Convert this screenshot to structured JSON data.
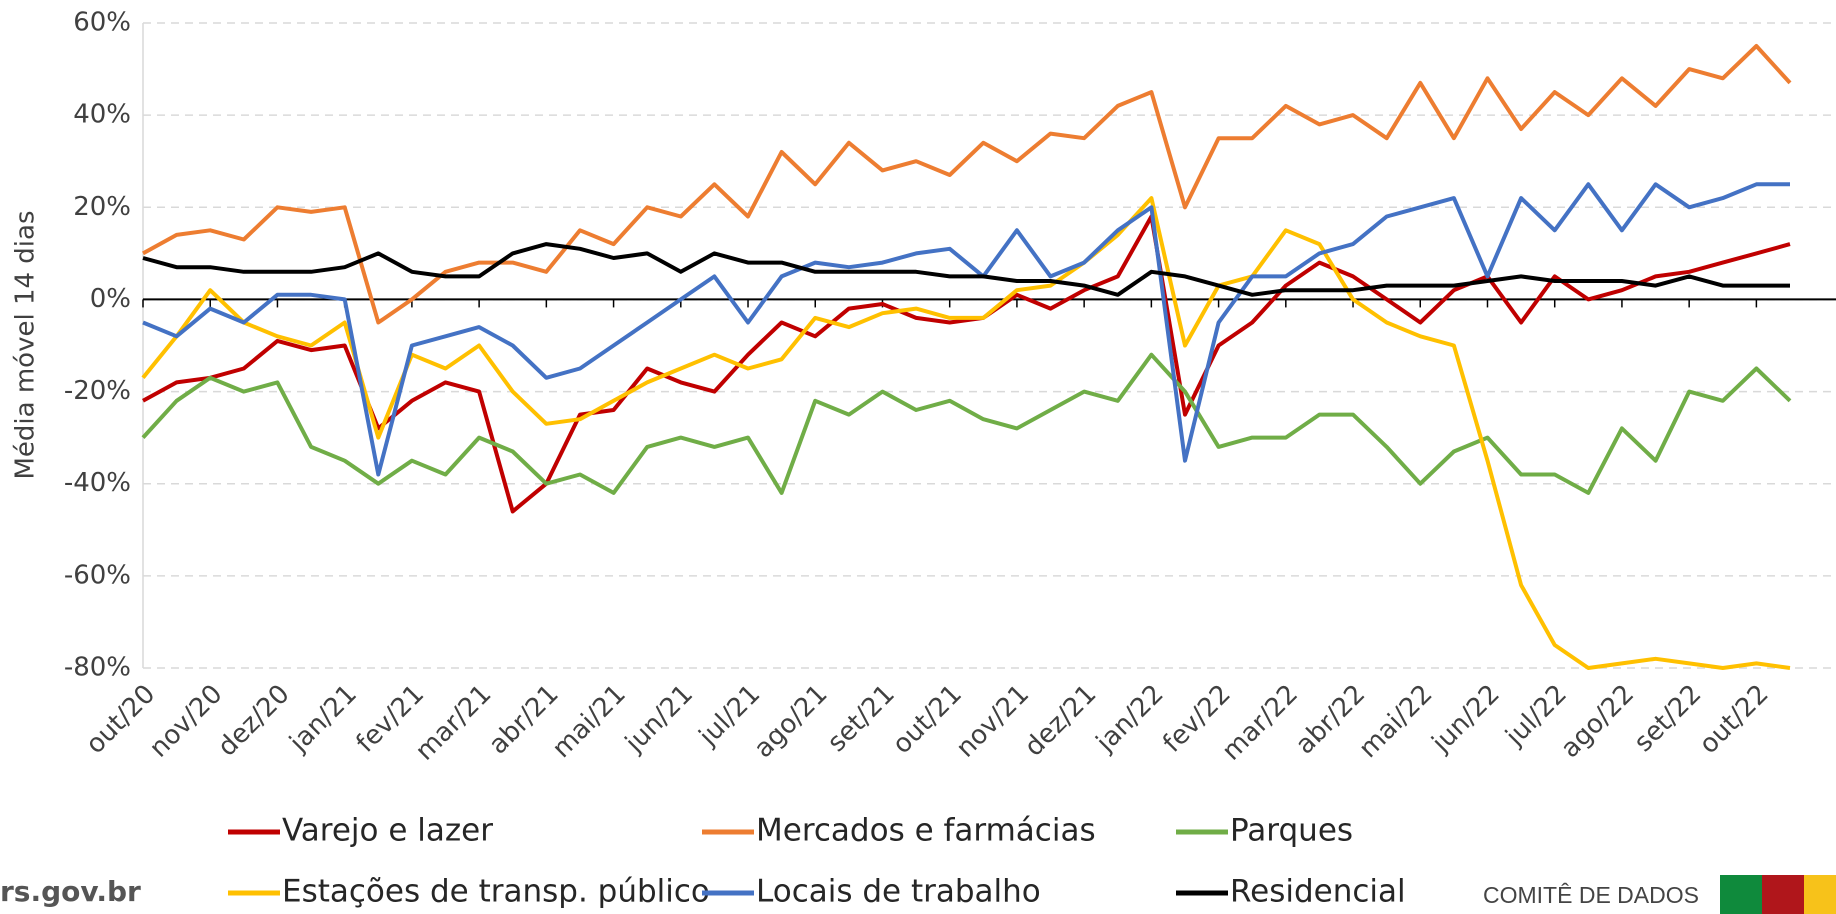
{
  "chart_data": {
    "type": "line",
    "ylabel": "Média móvel 14 dias",
    "categories": [
      "out/20",
      null,
      "nov/20",
      null,
      "dez/20",
      null,
      "jan/21",
      null,
      "fev/21",
      null,
      "mar/21",
      null,
      "abr/21",
      null,
      "mai/21",
      null,
      "jun/21",
      null,
      "jul/21",
      null,
      "ago/21",
      null,
      "set/21",
      null,
      "out/21",
      null,
      "nov/21",
      null,
      "dez/21",
      null,
      "jan/22",
      null,
      "fev/22",
      null,
      "mar/22",
      null,
      "abr/22",
      null,
      "mai/22",
      null,
      "jun/22",
      null,
      "jul/22",
      null,
      "ago/22",
      null,
      "set/22",
      null,
      "out/22",
      null
    ],
    "ylim": [
      -80,
      60
    ],
    "yticks": [
      {
        "value": -80,
        "label": "-80%"
      },
      {
        "value": -60,
        "label": "-60%"
      },
      {
        "value": -40,
        "label": "-40%"
      },
      {
        "value": -20,
        "label": "-20%"
      },
      {
        "value": 0,
        "label": "0%"
      },
      {
        "value": 20,
        "label": "20%"
      },
      {
        "value": 40,
        "label": "40%"
      },
      {
        "value": 60,
        "label": "60%"
      }
    ],
    "grid": true,
    "legend": "bottom",
    "series": [
      {
        "name": "Varejo e lazer",
        "color": "#c00000",
        "values": [
          -22,
          -18,
          -17,
          -15,
          -9,
          -11,
          -10,
          -28,
          -22,
          -18,
          -20,
          -46,
          -40,
          -25,
          -24,
          -15,
          -18,
          -20,
          -12,
          -5,
          -8,
          -2,
          -1,
          -4,
          -5,
          -4,
          1,
          -2,
          2,
          5,
          18,
          -25,
          -10,
          -5,
          3,
          8,
          5,
          0,
          -5,
          2,
          5,
          -5,
          5,
          0,
          2,
          5,
          6,
          8,
          10,
          12
        ]
      },
      {
        "name": "Mercados e farmácias",
        "color": "#ed7d31",
        "values": [
          10,
          14,
          15,
          13,
          20,
          19,
          20,
          -5,
          0,
          6,
          8,
          8,
          6,
          15,
          12,
          20,
          18,
          25,
          18,
          32,
          25,
          34,
          28,
          30,
          27,
          34,
          30,
          36,
          35,
          42,
          45,
          20,
          35,
          35,
          42,
          38,
          40,
          35,
          47,
          35,
          48,
          37,
          45,
          40,
          48,
          42,
          50,
          48,
          55,
          47
        ]
      },
      {
        "name": "Parques",
        "color": "#70ad47",
        "values": [
          -30,
          -22,
          -17,
          -20,
          -18,
          -32,
          -35,
          -40,
          -35,
          -38,
          -30,
          -33,
          -40,
          -38,
          -42,
          -32,
          -30,
          -32,
          -30,
          -42,
          -22,
          -25,
          -20,
          -24,
          -22,
          -26,
          -28,
          -24,
          -20,
          -22,
          -12,
          -20,
          -32,
          -30,
          -30,
          -25,
          -25,
          -32,
          -40,
          -33,
          -30,
          -38,
          -38,
          -42,
          -28,
          -35,
          -20,
          -22,
          -15,
          -22
        ]
      },
      {
        "name": "Estações de transp. público",
        "color": "#ffc000",
        "values": [
          -17,
          -8,
          2,
          -5,
          -8,
          -10,
          -5,
          -30,
          -12,
          -15,
          -10,
          -20,
          -27,
          -26,
          -22,
          -18,
          -15,
          -12,
          -15,
          -13,
          -4,
          -6,
          -3,
          -2,
          -4,
          -4,
          2,
          3,
          8,
          14,
          22,
          -10,
          3,
          5,
          15,
          12,
          0,
          -5,
          -8,
          -10,
          -35,
          -62,
          -75,
          -80,
          -79,
          -78,
          -79,
          -80,
          -79,
          -80
        ]
      },
      {
        "name": "Locais de trabalho",
        "color": "#4472c4",
        "values": [
          -5,
          -8,
          -2,
          -5,
          1,
          1,
          0,
          -38,
          -10,
          -8,
          -6,
          -10,
          -17,
          -15,
          -10,
          -5,
          0,
          5,
          -5,
          5,
          8,
          7,
          8,
          10,
          11,
          5,
          15,
          5,
          8,
          15,
          20,
          -35,
          -5,
          5,
          5,
          10,
          12,
          18,
          20,
          22,
          5,
          22,
          15,
          25,
          15,
          25,
          20,
          22,
          25,
          25
        ]
      },
      {
        "name": "Residencial",
        "color": "#000000",
        "values": [
          9,
          7,
          7,
          6,
          6,
          6,
          7,
          10,
          6,
          5,
          5,
          10,
          12,
          11,
          9,
          10,
          6,
          10,
          8,
          8,
          6,
          6,
          6,
          6,
          5,
          5,
          4,
          4,
          3,
          1,
          6,
          5,
          3,
          1,
          2,
          2,
          2,
          3,
          3,
          3,
          4,
          5,
          4,
          4,
          4,
          3,
          5,
          3,
          3,
          3
        ]
      }
    ]
  },
  "footer": {
    "site": "rs.gov.br",
    "committee": "COMITÊ DE DADOS"
  }
}
